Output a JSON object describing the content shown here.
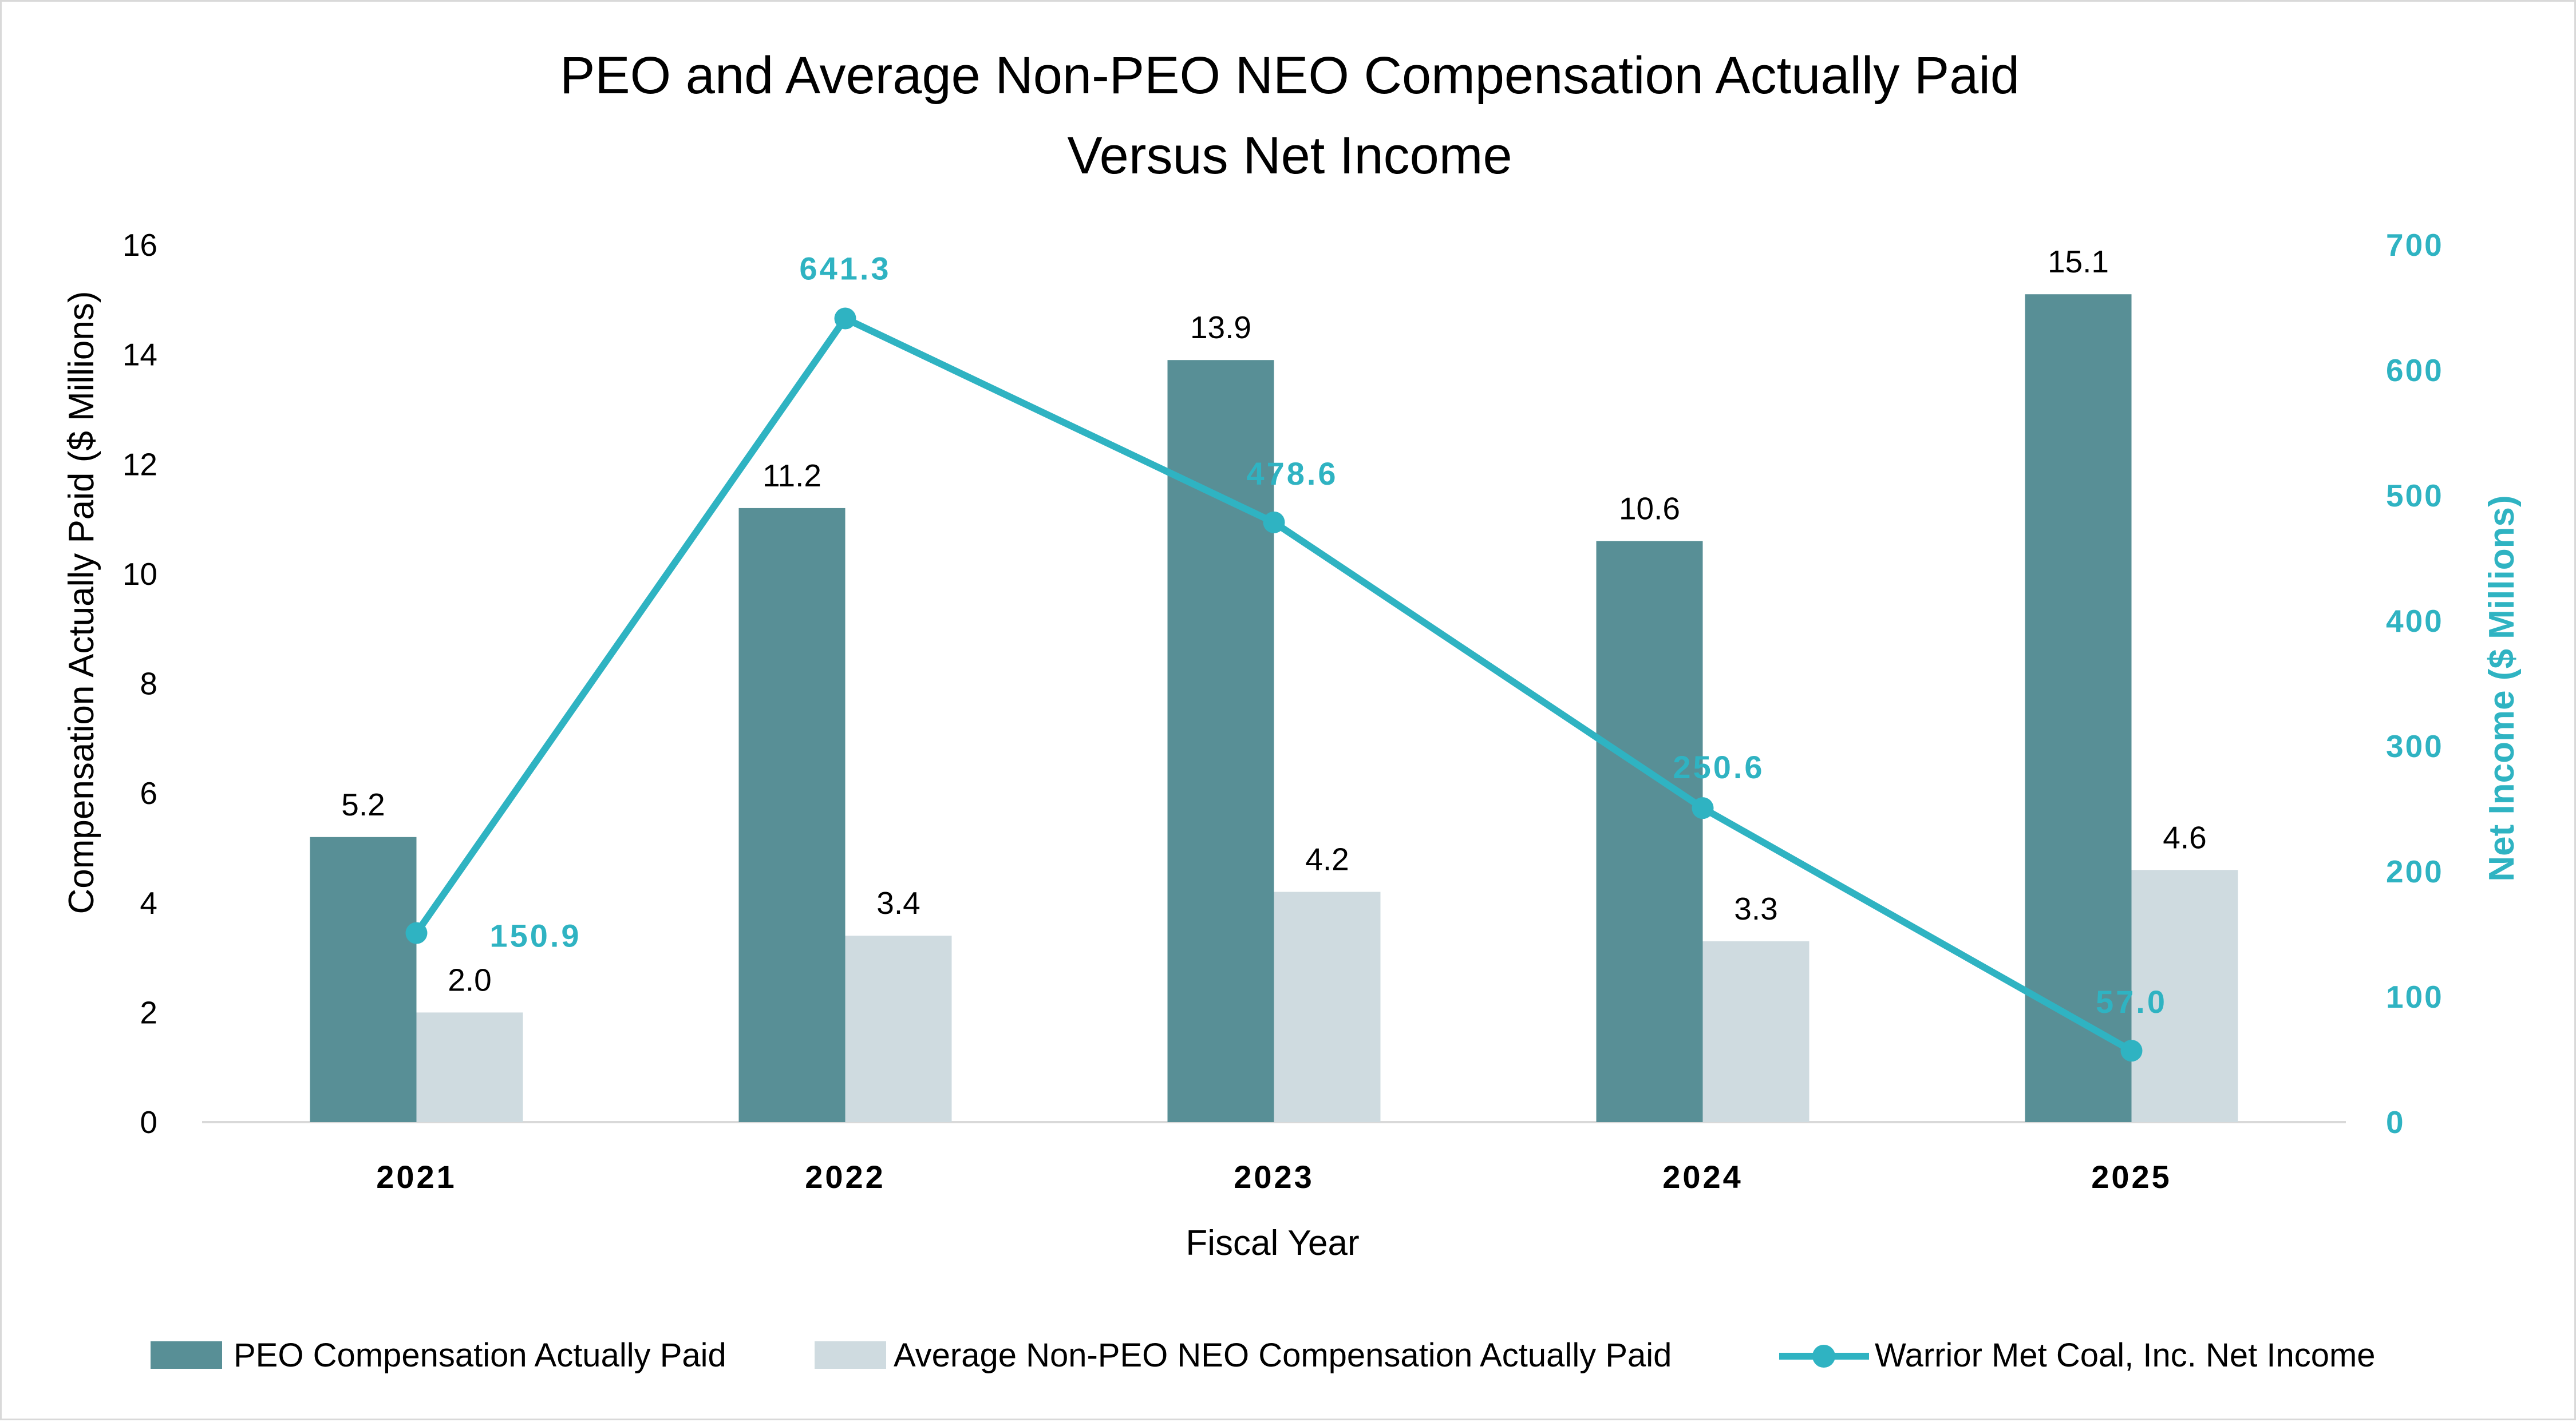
{
  "chart_data": {
    "type": "bar",
    "title_lines": [
      "PEO and Average Non-PEO NEO Compensation Actually Paid",
      "Versus Net Income"
    ],
    "xlabel": "Fiscal Year",
    "ylabel": "Compensation Actually Paid ($ Millions)",
    "ylabel_right": "Net Income ($ Millions)",
    "categories": [
      "2021",
      "2022",
      "2023",
      "2024",
      "2025"
    ],
    "ylim": [
      0,
      16
    ],
    "yticks": [
      0,
      2,
      4,
      6,
      8,
      10,
      12,
      14,
      16
    ],
    "ylim_right": [
      0,
      700
    ],
    "yticks_right": [
      0,
      100,
      200,
      300,
      400,
      500,
      600,
      700
    ],
    "series": [
      {
        "name": "PEO Compensation Actually Paid",
        "type": "bar",
        "axis": "left",
        "color": "#588f96",
        "values": [
          5.2,
          11.2,
          13.9,
          10.6,
          15.1
        ],
        "labels": [
          "5.2",
          "11.2",
          "13.9",
          "10.6",
          "15.1"
        ]
      },
      {
        "name": "Average Non-PEO NEO Compensation Actually Paid",
        "type": "bar",
        "axis": "left",
        "color": "#cfdbe0",
        "values": [
          2.0,
          3.4,
          4.2,
          3.3,
          4.6
        ],
        "labels": [
          "2.0",
          "3.4",
          "4.2",
          "3.3",
          "4.6"
        ]
      },
      {
        "name": "Warrior Met Coal, Inc. Net Income",
        "type": "line",
        "axis": "right",
        "color": "#2fb3c2",
        "values": [
          150.9,
          641.3,
          478.6,
          250.6,
          57.0
        ],
        "labels": [
          "150.9",
          "641.3",
          "478.6",
          "250.6",
          "57.0"
        ]
      }
    ],
    "legend_position": "bottom",
    "grid": false
  }
}
